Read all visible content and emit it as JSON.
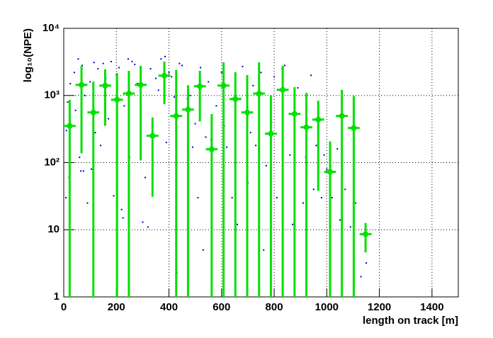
{
  "chart_data": {
    "type": "scatter",
    "xlabel": "length on track [m]",
    "ylabel": "log₁₀(NPE)",
    "xlim": [
      0,
      1500
    ],
    "ylim": [
      1,
      10000
    ],
    "ylog": true,
    "grid": true,
    "xticks": [
      0,
      200,
      400,
      600,
      800,
      1000,
      1200,
      1400
    ],
    "yticks": [
      1,
      10,
      {
        "value": 100,
        "label": "10²"
      },
      {
        "value": 1000,
        "label": "10³"
      },
      {
        "value": 10000,
        "label": "10⁴"
      }
    ],
    "series": [
      {
        "color": "#0000cc",
        "x": [
          8,
          10,
          15,
          20,
          25,
          40,
          45,
          55,
          60,
          65,
          70,
          75,
          80,
          90,
          100,
          105,
          115,
          120,
          130,
          140,
          150,
          160,
          170,
          180,
          190,
          200,
          210,
          220,
          225,
          230,
          245,
          250,
          260,
          270,
          280,
          300,
          310,
          320,
          330,
          350,
          360,
          370,
          385,
          390,
          400,
          410,
          420,
          430,
          440,
          450,
          470,
          480,
          490,
          500,
          510,
          520,
          530,
          540,
          550,
          560,
          580,
          600,
          610,
          620,
          640,
          660,
          670,
          680,
          700,
          710,
          720,
          730,
          750,
          760,
          770,
          790,
          800,
          810,
          830,
          840,
          860,
          870,
          890,
          910,
          920,
          940,
          950,
          960,
          980,
          990,
          1000,
          1020,
          1040,
          1050,
          1070,
          1090,
          1110,
          1130,
          1150
        ],
        "values": [
          30,
          300,
          800,
          60,
          1500,
          2200,
          600,
          3500,
          120,
          75,
          2800,
          75,
          1000,
          25,
          1600,
          80,
          3100,
          280,
          2500,
          180,
          3000,
          1800,
          450,
          3200,
          32,
          2000,
          2600,
          20,
          15,
          700,
          3500,
          120,
          3200,
          2900,
          1500,
          13,
          60,
          11,
          2500,
          1800,
          1200,
          3500,
          3800,
          200,
          2200,
          1900,
          950,
          2.3,
          3000,
          2800,
          900,
          1000,
          170,
          380,
          30,
          2600,
          5,
          240,
          1600,
          220,
          700,
          2200,
          350,
          170,
          30,
          12,
          900,
          2700,
          50,
          280,
          1400,
          180,
          2200,
          5,
          90,
          400,
          1900,
          30,
          2500,
          2800,
          130,
          12,
          1300,
          25,
          120,
          2000,
          40,
          180,
          30,
          130,
          80,
          30,
          160,
          14,
          40,
          11,
          25,
          2,
          3.2
        ]
      },
      {
        "color": "#00e000",
        "x": [
          22.5,
          67.5,
          112.5,
          157.5,
          202.5,
          247.5,
          292.5,
          337.5,
          382.5,
          427.5,
          472.5,
          517.5,
          562.5,
          607.5,
          652.5,
          697.5,
          742.5,
          787.5,
          832.5,
          877.5,
          922.5,
          967.5,
          1012.5,
          1057.5,
          1102.5,
          1147.5
        ],
        "values": [
          352,
          1438,
          559,
          1404,
          865,
          1070,
          1438,
          251,
          1972,
          495,
          617,
          1371,
          158,
          1404,
          886,
          559,
          1070,
          270,
          1214,
          532,
          336,
          438,
          73,
          495,
          328,
          8.6
        ],
        "errors": [
          510,
          1300,
          1050,
          1050,
          1300,
          1260,
          1330,
          220,
          1230,
          1900,
          800,
          960,
          370,
          1720,
          1340,
          1460,
          2050,
          730,
          1550,
          800,
          760,
          400,
          134,
          720,
          650,
          4
        ],
        "xerr": 22.5
      }
    ]
  }
}
